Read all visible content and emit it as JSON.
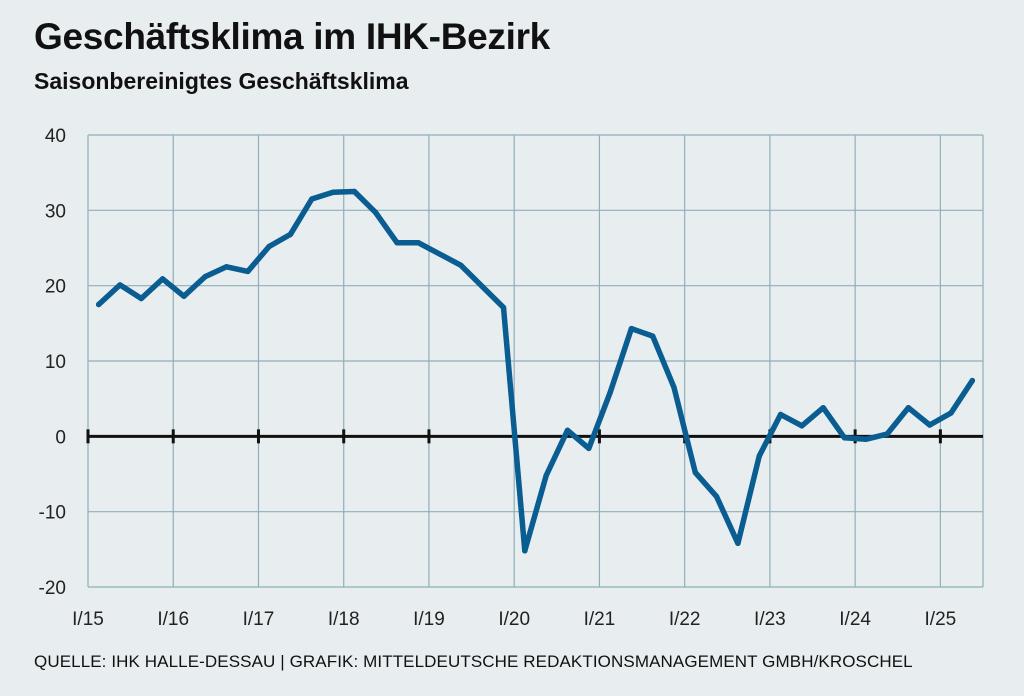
{
  "header": {
    "title": "Geschäftsklima im IHK-Bezirk",
    "subtitle": "Saisonbereinigtes Geschäftsklima"
  },
  "footer": {
    "source": "QUELLE: IHK HALLE-DESSAU | GRAFIK: MITTELDEUTSCHE REDAKTIONSMANAGEMENT GMBH/KROSCHEL"
  },
  "colors": {
    "line": "#0a5d91",
    "grid": "#8fb0b8",
    "zero": "#111111",
    "background": "#e8edf0"
  },
  "chart_data": {
    "type": "line",
    "title": "Geschäftsklima im IHK-Bezirk",
    "subtitle": "Saisonbereinigtes Geschäftsklima",
    "xlabel": "",
    "ylabel": "",
    "ylim": [
      -20,
      40
    ],
    "yticks": [
      "40",
      "30",
      "20",
      "10",
      "0",
      "-10",
      "-20"
    ],
    "ytick_values": [
      40,
      30,
      20,
      10,
      0,
      -10,
      -20
    ],
    "xticks": [
      "I/15",
      "I/16",
      "I/17",
      "I/18",
      "I/19",
      "I/20",
      "I/21",
      "I/22",
      "I/23",
      "I/24",
      "I/25"
    ],
    "x_quarters": [
      "I/15",
      "II/15",
      "III/15",
      "IV/15",
      "I/16",
      "II/16",
      "III/16",
      "IV/16",
      "I/17",
      "II/17",
      "III/17",
      "IV/17",
      "I/18",
      "II/18",
      "III/18",
      "IV/18",
      "I/19",
      "II/19",
      "III/19",
      "IV/19",
      "I/20",
      "II/20",
      "III/20",
      "IV/20",
      "I/21",
      "II/21",
      "III/21",
      "IV/21",
      "I/22",
      "II/22",
      "III/22",
      "IV/22",
      "I/23",
      "II/23",
      "III/23",
      "IV/23",
      "I/24",
      "II/24",
      "III/24",
      "IV/24",
      "I/25",
      "II/25"
    ],
    "grid": true,
    "series": [
      {
        "values": [
          17.5,
          20.1,
          18.3,
          20.9,
          18.6,
          21.2,
          22.5,
          21.9,
          25.2,
          26.8,
          31.5,
          32.4,
          32.5,
          29.7,
          25.7,
          25.7,
          24.2,
          22.7,
          19.9,
          17.1,
          -15.2,
          -5.2,
          0.8,
          -1.6,
          5.8,
          14.3,
          13.3,
          6.5,
          -4.8,
          -8.0,
          -14.2,
          -2.6,
          2.9,
          1.4,
          3.8,
          -0.2,
          -0.4,
          0.3,
          3.8,
          1.5,
          3.1,
          7.4
        ]
      }
    ]
  }
}
